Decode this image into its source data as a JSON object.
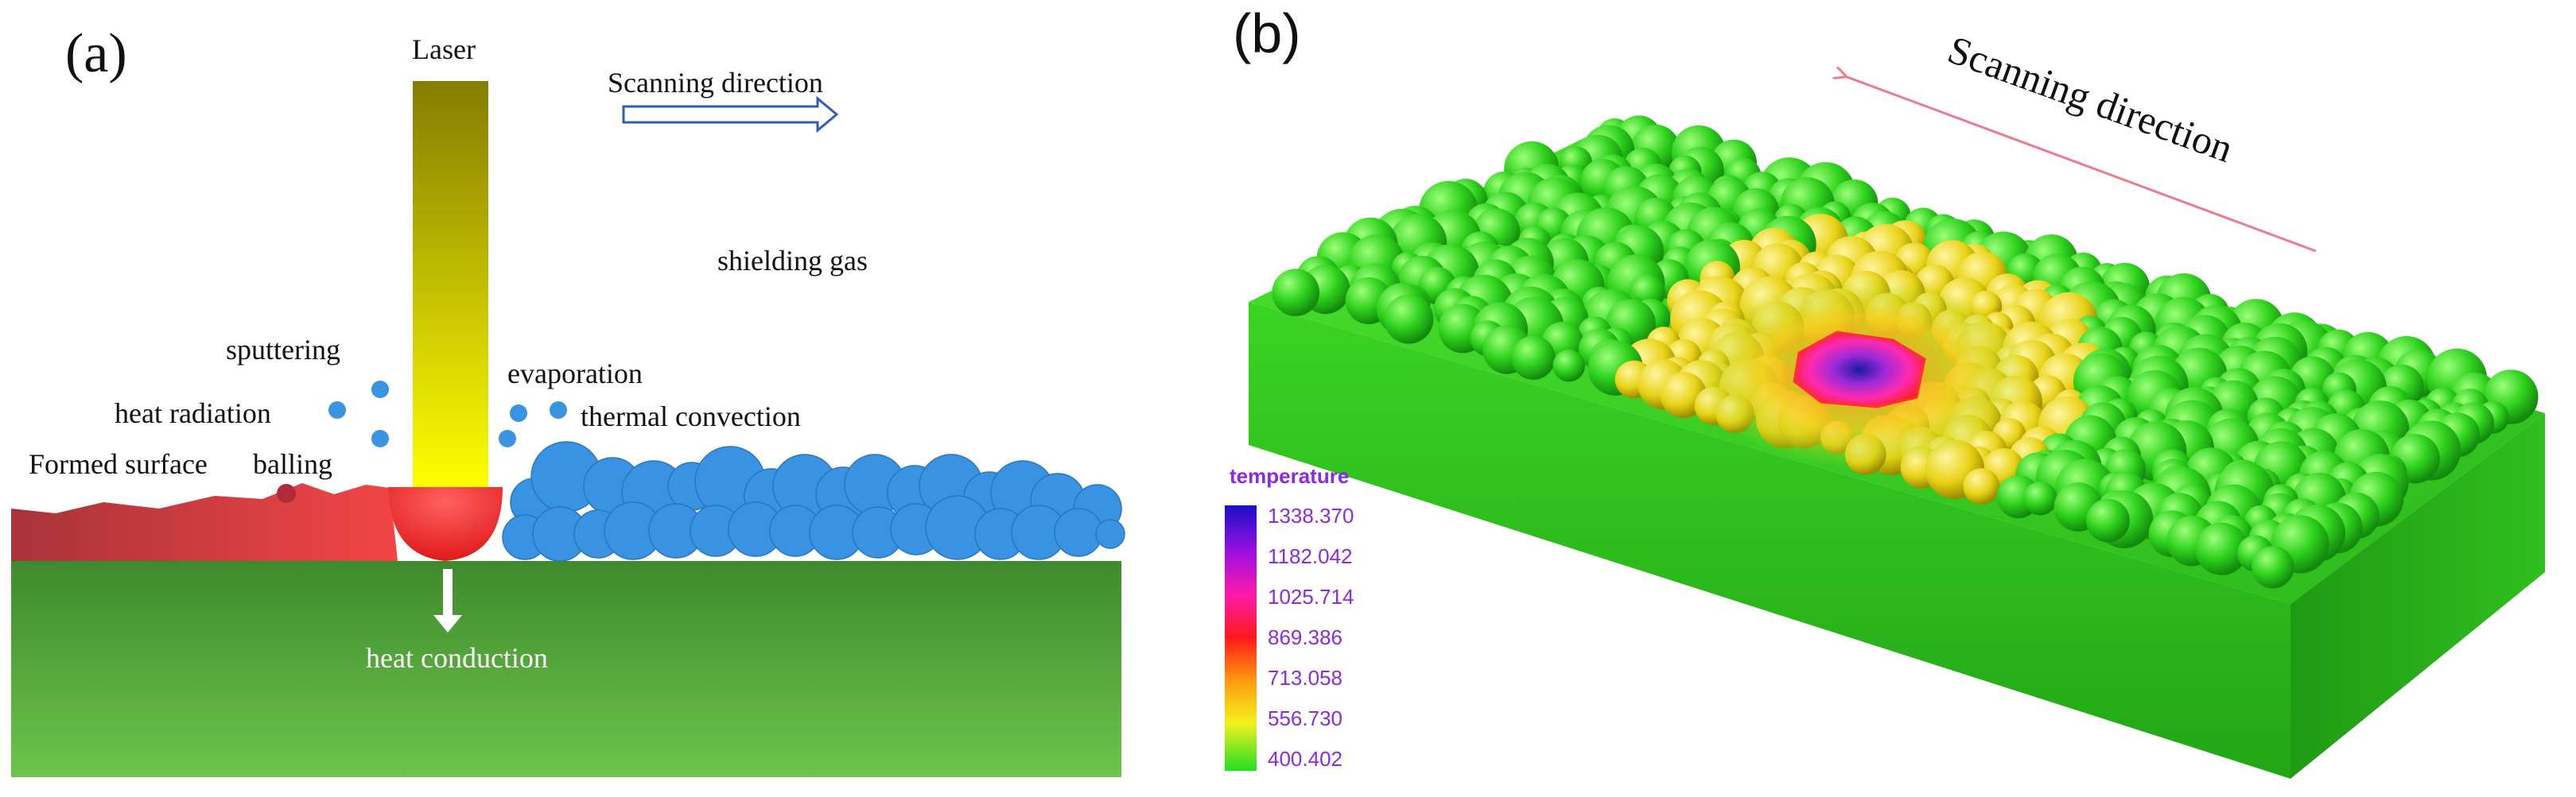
{
  "panel_a": {
    "label": "(a)",
    "laser": "Laser",
    "scanning_direction": "Scanning direction",
    "shielding_gas": "shielding gas",
    "sputtering": "sputtering",
    "heat_radiation": "heat radiation",
    "evaporation": "evaporation",
    "thermal_convection": "thermal convection",
    "formed_surface": "Formed surface",
    "balling": "balling",
    "heat_conduction": "heat conduction",
    "colors": {
      "substrate_top": "#3f8a2e",
      "substrate_bottom": "#6cc24a",
      "powder": "#3a93e2",
      "melt": "#ef3b3b",
      "formed": "#b23a3a",
      "laser_top": "#857d00",
      "laser_bottom": "#ffff00"
    }
  },
  "panel_b": {
    "label": "(b)",
    "scanning_direction": "Scanning direction",
    "legend_title": "temperature",
    "legend_values": [
      "1338.370",
      "1182.042",
      "1025.714",
      "869.386",
      "713.058",
      "556.730",
      "400.402"
    ],
    "colors": {
      "powder": "#33dd22",
      "arrow": "#f07a8a",
      "legend_text": "#8a2be2"
    }
  }
}
